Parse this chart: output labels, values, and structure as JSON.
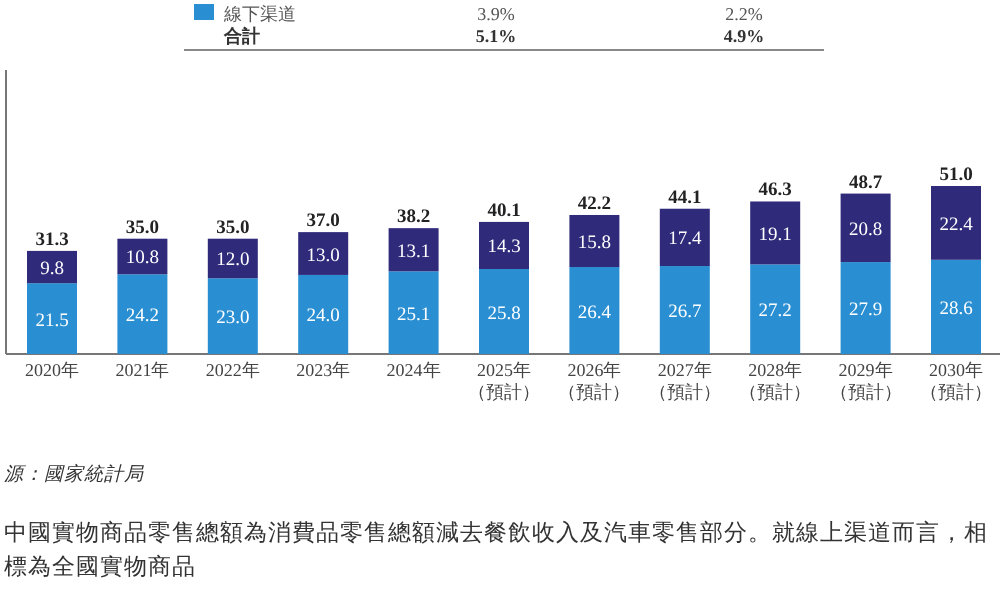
{
  "chart_data": {
    "type": "bar",
    "stacked": true,
    "legend": "top",
    "categories": [
      "2020年",
      "2021年",
      "2022年",
      "2023年",
      "2024年",
      "2025年（預計）",
      "2026年（預計）",
      "2027年（預計）",
      "2028年（預計）",
      "2029年（預計）",
      "2030年（預計）"
    ],
    "series": [
      {
        "name": "線下渠道",
        "color": "#2a8fd2",
        "values": [
          21.5,
          24.2,
          23.0,
          24.0,
          25.1,
          25.8,
          26.4,
          26.7,
          27.2,
          27.9,
          28.6
        ],
        "value_labels": [
          "21.5",
          "24.2",
          "23.0",
          "24.0",
          "25.1",
          "25.8",
          "26.4",
          "26.7",
          "27.2",
          "27.9",
          "28.6"
        ]
      },
      {
        "color": "#2f2b7a",
        "values": [
          9.8,
          10.8,
          12.0,
          13.0,
          13.1,
          14.3,
          15.8,
          17.4,
          19.1,
          20.8,
          22.4
        ],
        "value_labels": [
          "9.8",
          "10.8",
          "12.0",
          "13.0",
          "13.1",
          "14.3",
          "15.8",
          "17.4",
          "19.1",
          "20.8",
          "22.4"
        ]
      }
    ],
    "totals": [
      "31.3",
      "35.0",
      "35.0",
      "37.0",
      "38.2",
      "40.1",
      "42.2",
      "44.1",
      "46.3",
      "48.7",
      "51.0"
    ],
    "annotations": [
      "3.9%",
      "2.2%",
      "合計",
      "5.1%",
      "4.9%",
      "源：國家統計局",
      "中國實物商品零售總額為消費品零售總額減去餐飲收入及汽車零售部分。就線上渠道而言，相",
      "標為全國實物商品"
    ]
  }
}
